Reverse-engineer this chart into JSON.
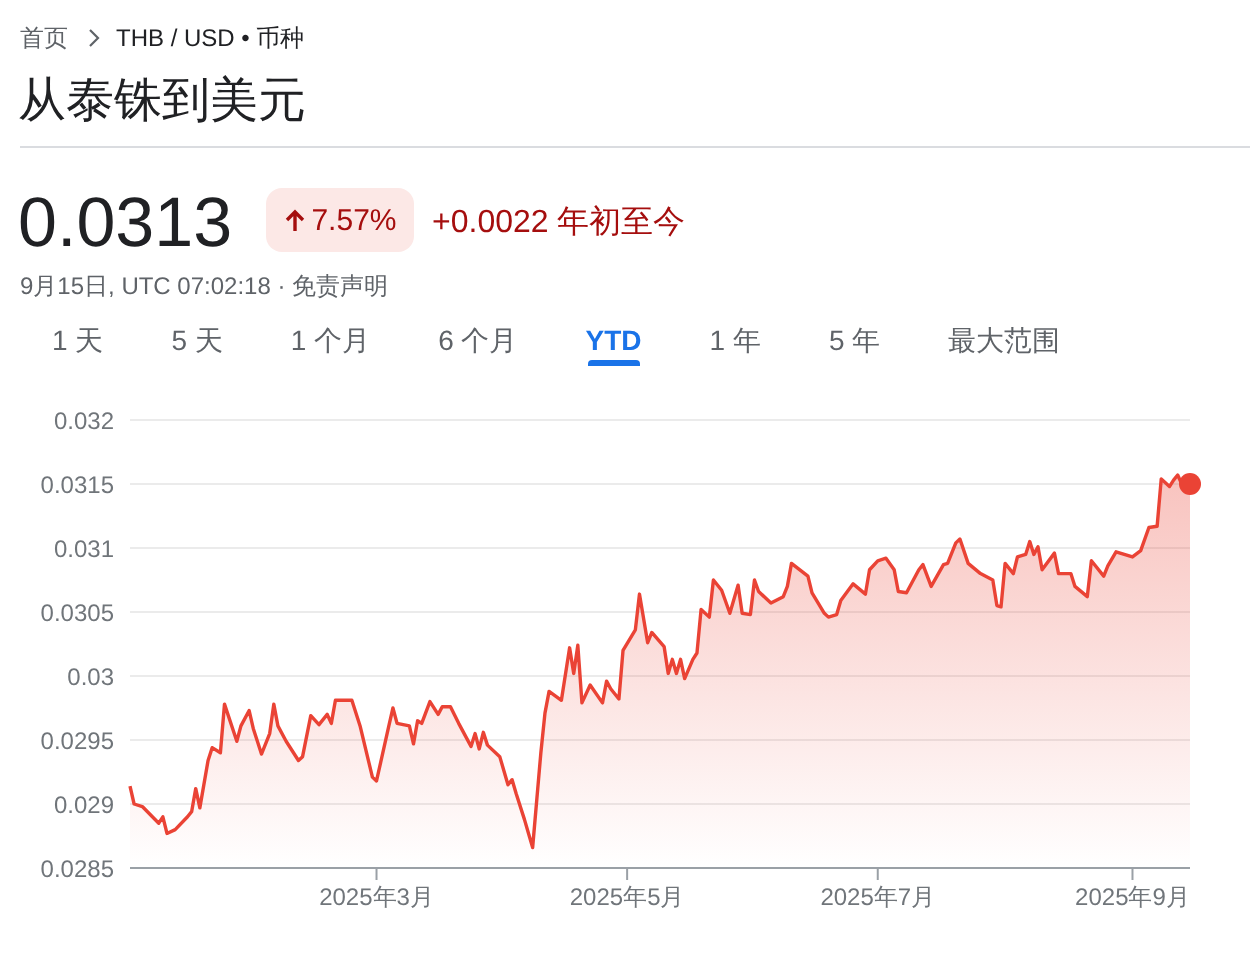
{
  "chart_data": {
    "type": "area",
    "title": "从泰铢到美元",
    "annotations": [
      "首页",
      "THB / USD • 币种",
      "0.0313",
      "7.57%",
      "+0.0022 年初至今",
      "9月15日, UTC 07:02:18 · 免责声明",
      "1 天",
      "5 天",
      "1 个月",
      "6 个月",
      "YTD",
      "1 年",
      "5 年",
      "最大范围"
    ],
    "x": [
      "2024-12-31",
      "2025-01-01",
      "2025-01-03",
      "2025-01-07",
      "2025-01-08",
      "2025-01-09",
      "2025-01-11",
      "2025-01-14",
      "2025-01-15",
      "2025-01-16",
      "2025-01-17",
      "2025-01-19",
      "2025-01-20",
      "2025-01-22",
      "2025-01-23",
      "2025-01-26",
      "2025-01-27",
      "2025-01-29",
      "2025-01-30",
      "2025-02-01",
      "2025-02-03",
      "2025-02-04",
      "2025-02-05",
      "2025-02-07",
      "2025-02-10",
      "2025-02-11",
      "2025-02-13",
      "2025-02-15",
      "2025-02-17",
      "2025-02-18",
      "2025-02-19",
      "2025-02-23",
      "2025-02-25",
      "2025-02-28",
      "2025-03-01",
      "2025-03-04",
      "2025-03-05",
      "2025-03-06",
      "2025-03-09",
      "2025-03-10",
      "2025-03-11",
      "2025-03-12",
      "2025-03-14",
      "2025-03-16",
      "2025-03-17",
      "2025-03-19",
      "2025-03-21",
      "2025-03-24",
      "2025-03-25",
      "2025-03-26",
      "2025-03-27",
      "2025-03-28",
      "2025-03-31",
      "2025-04-02",
      "2025-04-03",
      "2025-04-04",
      "2025-04-06",
      "2025-04-07",
      "2025-04-08",
      "2025-04-09",
      "2025-04-10",
      "2025-04-11",
      "2025-04-12",
      "2025-04-15",
      "2025-04-17",
      "2025-04-18",
      "2025-04-19",
      "2025-04-20",
      "2025-04-22",
      "2025-04-25",
      "2025-04-26",
      "2025-04-27",
      "2025-04-29",
      "2025-04-30",
      "2025-05-03",
      "2025-05-04",
      "2025-05-06",
      "2025-05-07",
      "2025-05-10",
      "2025-05-11",
      "2025-05-12",
      "2025-05-13",
      "2025-05-14",
      "2025-05-15",
      "2025-05-17",
      "2025-05-18",
      "2025-05-19",
      "2025-05-21",
      "2025-05-22",
      "2025-05-24",
      "2025-05-26",
      "2025-05-28",
      "2025-05-29",
      "2025-05-31",
      "2025-06-01",
      "2025-06-02",
      "2025-06-05",
      "2025-06-08",
      "2025-06-09",
      "2025-06-10",
      "2025-06-14",
      "2025-06-15",
      "2025-06-18",
      "2025-06-19",
      "2025-06-21",
      "2025-06-22",
      "2025-06-25",
      "2025-06-28",
      "2025-06-29",
      "2025-07-01",
      "2025-07-03",
      "2025-07-05",
      "2025-07-06",
      "2025-07-08",
      "2025-07-11",
      "2025-07-12",
      "2025-07-14",
      "2025-07-17",
      "2025-07-18",
      "2025-07-20",
      "2025-07-21",
      "2025-07-23",
      "2025-07-26",
      "2025-07-29",
      "2025-07-30",
      "2025-07-31",
      "2025-08-01",
      "2025-08-03",
      "2025-08-04",
      "2025-08-06",
      "2025-08-07",
      "2025-08-08",
      "2025-08-09",
      "2025-08-10",
      "2025-08-13",
      "2025-08-14",
      "2025-08-17",
      "2025-08-18",
      "2025-08-21",
      "2025-08-22",
      "2025-08-25",
      "2025-08-26",
      "2025-08-28",
      "2025-09-01",
      "2025-09-03",
      "2025-09-05",
      "2025-09-07",
      "2025-09-08",
      "2025-09-10",
      "2025-09-11",
      "2025-09-12",
      "2025-09-13",
      "2025-09-15"
    ],
    "series": [
      {
        "color": "#ea4335",
        "values": [
          0.02914,
          0.029,
          0.02898,
          0.02885,
          0.0289,
          0.02877,
          0.0288,
          0.0289,
          0.02894,
          0.02912,
          0.02897,
          0.02934,
          0.02944,
          0.0294,
          0.02978,
          0.02949,
          0.02961,
          0.02973,
          0.02959,
          0.02939,
          0.02955,
          0.02978,
          0.02961,
          0.02949,
          0.02934,
          0.02937,
          0.02969,
          0.02962,
          0.0297,
          0.02963,
          0.02981,
          0.02981,
          0.02961,
          0.02921,
          0.02918,
          0.02961,
          0.02975,
          0.02963,
          0.02961,
          0.02947,
          0.02965,
          0.02963,
          0.0298,
          0.0297,
          0.02976,
          0.02976,
          0.02963,
          0.02945,
          0.02955,
          0.02943,
          0.02956,
          0.02946,
          0.02937,
          0.02915,
          0.02919,
          0.02908,
          0.02888,
          0.02877,
          0.02866,
          0.02903,
          0.0294,
          0.02971,
          0.02988,
          0.02981,
          0.03022,
          0.03002,
          0.03024,
          0.02979,
          0.02993,
          0.02979,
          0.02996,
          0.0299,
          0.02982,
          0.0302,
          0.03036,
          0.03064,
          0.03026,
          0.03034,
          0.03023,
          0.03002,
          0.03013,
          0.03002,
          0.03013,
          0.02998,
          0.03013,
          0.03018,
          0.03052,
          0.03046,
          0.03075,
          0.03067,
          0.03049,
          0.03071,
          0.03049,
          0.03048,
          0.03075,
          0.03066,
          0.03057,
          0.03062,
          0.0307,
          0.03088,
          0.03078,
          0.03065,
          0.03049,
          0.03046,
          0.03048,
          0.03059,
          0.03072,
          0.03064,
          0.03083,
          0.0309,
          0.03092,
          0.03083,
          0.03066,
          0.03065,
          0.03083,
          0.03087,
          0.0307,
          0.03087,
          0.03088,
          0.03104,
          0.03107,
          0.03088,
          0.0308,
          0.03075,
          0.03055,
          0.03054,
          0.03088,
          0.0308,
          0.03093,
          0.03095,
          0.03105,
          0.03095,
          0.03101,
          0.03083,
          0.03096,
          0.0308,
          0.0308,
          0.0307,
          0.03062,
          0.0309,
          0.03078,
          0.03086,
          0.03097,
          0.03093,
          0.03098,
          0.03116,
          0.03117,
          0.03154,
          0.03148,
          0.03153,
          0.03157,
          0.0315,
          0.0315
        ]
      },
      {
        "type": "scatter",
        "color": "#ea4335",
        "x": [
          "2025-09-15"
        ],
        "values": [
          0.0315
        ]
      }
    ],
    "xlim": [
      "2024-12-31",
      "2025-09-15"
    ],
    "xticks": [
      {
        "value": "2025-03-01",
        "label": "2025年3月"
      },
      {
        "value": "2025-05-01",
        "label": "2025年5月"
      },
      {
        "value": "2025-07-01",
        "label": "2025年7月"
      },
      {
        "value": "2025-09-01",
        "label": "2025年9月"
      }
    ],
    "ylim": [
      0.0285,
      0.032
    ],
    "yticks": [
      0.0285,
      0.029,
      0.0295,
      0.03,
      0.0305,
      0.031,
      0.0315,
      0.032
    ],
    "grid": "y"
  }
}
